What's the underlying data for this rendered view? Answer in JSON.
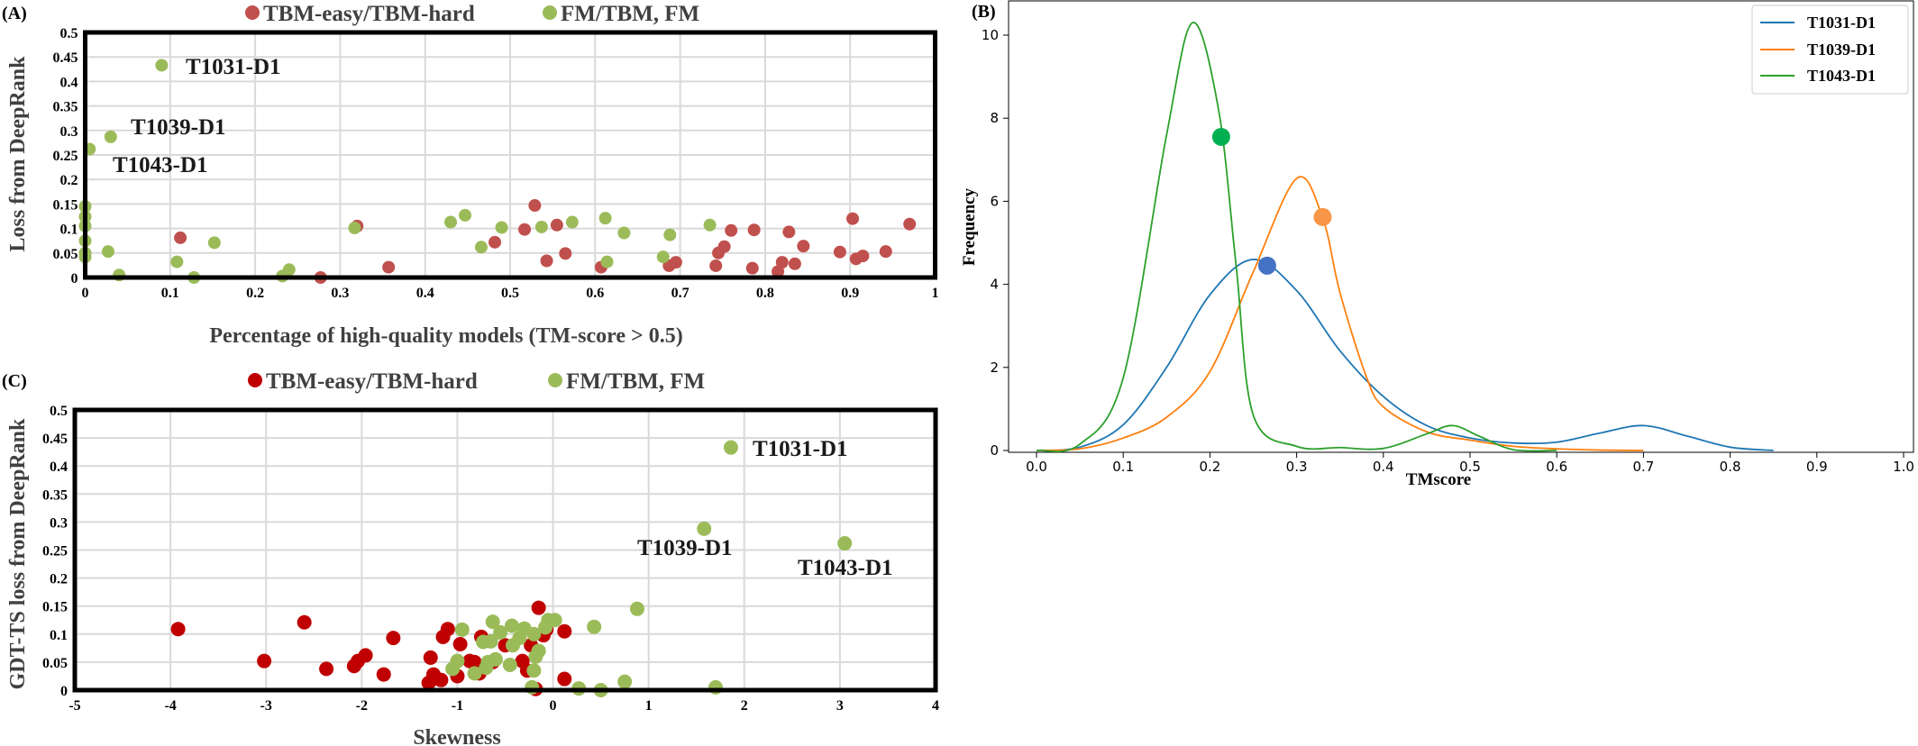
{
  "panels": {
    "a_letter": "(A)",
    "b_letter": "(B)",
    "c_letter": "(C)"
  },
  "colors": {
    "a_red": "#c0504d",
    "green": "#9bbb59",
    "c_red": "#c00000",
    "blue": "#1f77b4",
    "orange": "#ff7f0e",
    "b_green": "#2ca02c",
    "blue_marker": "#4472c4",
    "orange_marker": "#f79646",
    "green_marker": "#00b050"
  },
  "chart_data": [
    {
      "type": "scatter",
      "panel": "A",
      "xlabel": "Percentage of high-quality models (TM-score > 0.5)",
      "ylabel": "Loss from DeepRank",
      "xlim": [
        0,
        1
      ],
      "ylim": [
        0,
        0.5
      ],
      "xticks": [
        "0",
        "0.1",
        "0.2",
        "0.3",
        "0.4",
        "0.5",
        "0.6",
        "0.7",
        "0.8",
        "0.9",
        "1"
      ],
      "yticks": [
        "0",
        "0.05",
        "0.1",
        "0.15",
        "0.2",
        "0.25",
        "0.3",
        "0.35",
        "0.4",
        "0.45",
        "0.5"
      ],
      "grid": true,
      "legend_position": "top",
      "series": [
        {
          "name": "TBM-easy/TBM-hard",
          "points": [
            [
              0.112,
              0.081
            ],
            [
              0.277,
              0.0
            ],
            [
              0.32,
              0.105
            ],
            [
              0.357,
              0.021
            ],
            [
              0.482,
              0.072
            ],
            [
              0.517,
              0.098
            ],
            [
              0.529,
              0.147
            ],
            [
              0.543,
              0.034
            ],
            [
              0.555,
              0.107
            ],
            [
              0.565,
              0.049
            ],
            [
              0.607,
              0.021
            ],
            [
              0.687,
              0.024
            ],
            [
              0.695,
              0.031
            ],
            [
              0.742,
              0.024
            ],
            [
              0.745,
              0.05
            ],
            [
              0.752,
              0.063
            ],
            [
              0.76,
              0.096
            ],
            [
              0.785,
              0.019
            ],
            [
              0.787,
              0.097
            ],
            [
              0.815,
              0.012
            ],
            [
              0.82,
              0.031
            ],
            [
              0.828,
              0.093
            ],
            [
              0.835,
              0.028
            ],
            [
              0.845,
              0.064
            ],
            [
              0.888,
              0.052
            ],
            [
              0.903,
              0.12
            ],
            [
              0.907,
              0.038
            ],
            [
              0.915,
              0.044
            ],
            [
              0.942,
              0.053
            ],
            [
              0.97,
              0.109
            ]
          ]
        },
        {
          "name": "FM/TBM, FM",
          "points": [
            [
              0.09,
              0.433
            ],
            [
              0.03,
              0.287
            ],
            [
              0.005,
              0.262
            ],
            [
              0.0,
              0.145
            ],
            [
              0.0,
              0.124
            ],
            [
              0.0,
              0.105
            ],
            [
              0.0,
              0.075
            ],
            [
              0.0,
              0.05
            ],
            [
              0.0,
              0.042
            ],
            [
              0.027,
              0.053
            ],
            [
              0.04,
              0.005
            ],
            [
              0.108,
              0.032
            ],
            [
              0.128,
              0.0
            ],
            [
              0.152,
              0.071
            ],
            [
              0.232,
              0.003
            ],
            [
              0.24,
              0.016
            ],
            [
              0.317,
              0.101
            ],
            [
              0.43,
              0.113
            ],
            [
              0.447,
              0.127
            ],
            [
              0.466,
              0.062
            ],
            [
              0.49,
              0.102
            ],
            [
              0.537,
              0.103
            ],
            [
              0.573,
              0.113
            ],
            [
              0.612,
              0.121
            ],
            [
              0.614,
              0.032
            ],
            [
              0.634,
              0.091
            ],
            [
              0.68,
              0.042
            ],
            [
              0.688,
              0.087
            ],
            [
              0.735,
              0.107
            ]
          ]
        }
      ],
      "annotations": [
        "T1031-D1",
        "T1039-D1",
        "T1043-D1"
      ]
    },
    {
      "type": "line",
      "panel": "B",
      "xlabel": "TMscore",
      "ylabel": "Frequency",
      "xlim": [
        -0.04,
        1.0
      ],
      "ylim": [
        0,
        10.5
      ],
      "xticks": [
        "0.0",
        "0.1",
        "0.2",
        "0.3",
        "0.4",
        "0.5",
        "0.6",
        "0.7",
        "0.8",
        "0.9",
        "1.0"
      ],
      "yticks": [
        "0",
        "2",
        "4",
        "6",
        "8",
        "10"
      ],
      "grid": false,
      "legend_position": "top-right",
      "series": [
        {
          "name": "T1031-D1",
          "x": [
            0.0,
            0.05,
            0.1,
            0.15,
            0.2,
            0.25,
            0.3,
            0.35,
            0.4,
            0.45,
            0.5,
            0.55,
            0.6,
            0.65,
            0.7,
            0.75,
            0.8,
            0.85
          ],
          "y": [
            0.0,
            0.08,
            0.62,
            2.0,
            3.75,
            4.6,
            3.85,
            2.4,
            1.3,
            0.6,
            0.3,
            0.18,
            0.2,
            0.42,
            0.6,
            0.35,
            0.08,
            0.0
          ],
          "marker": [
            0.266,
            4.45
          ]
        },
        {
          "name": "T1039-D1",
          "x": [
            0.0,
            0.05,
            0.1,
            0.15,
            0.2,
            0.25,
            0.3,
            0.33,
            0.35,
            0.38,
            0.4,
            0.45,
            0.5,
            0.55,
            0.6,
            0.65,
            0.7
          ],
          "y": [
            0.0,
            0.04,
            0.3,
            0.8,
            1.9,
            4.3,
            6.55,
            5.6,
            3.8,
            1.8,
            1.05,
            0.45,
            0.25,
            0.1,
            0.04,
            0.01,
            0.0
          ],
          "marker": [
            0.33,
            5.62
          ]
        },
        {
          "name": "T1043-D1",
          "x": [
            0.0,
            0.05,
            0.1,
            0.15,
            0.18,
            0.21,
            0.23,
            0.25,
            0.3,
            0.35,
            0.4,
            0.45,
            0.48,
            0.51,
            0.55,
            0.6
          ],
          "y": [
            0.0,
            0.15,
            1.75,
            7.6,
            10.3,
            8.2,
            4.5,
            0.85,
            0.1,
            0.07,
            0.05,
            0.4,
            0.6,
            0.35,
            0.02,
            0.0
          ],
          "marker": [
            0.213,
            7.55
          ]
        }
      ]
    },
    {
      "type": "scatter",
      "panel": "C",
      "xlabel": "Skewness",
      "ylabel": "GDT-TS loss from DeepRank",
      "xlim": [
        -5,
        4
      ],
      "ylim": [
        0,
        0.5
      ],
      "xticks": [
        "-5",
        "-4",
        "-3",
        "-2",
        "-1",
        "0",
        "1",
        "2",
        "3",
        "4"
      ],
      "yticks": [
        "0",
        "0.05",
        "0.1",
        "0.15",
        "0.2",
        "0.25",
        "0.3",
        "0.35",
        "0.4",
        "0.45",
        "0.5"
      ],
      "grid": true,
      "legend_position": "top",
      "series": [
        {
          "name": "TBM-easy/TBM-hard",
          "points": [
            [
              -3.92,
              0.109
            ],
            [
              -3.02,
              0.052
            ],
            [
              -2.6,
              0.121
            ],
            [
              -2.37,
              0.038
            ],
            [
              -2.08,
              0.043
            ],
            [
              -2.04,
              0.052
            ],
            [
              -1.96,
              0.062
            ],
            [
              -1.77,
              0.028
            ],
            [
              -1.67,
              0.093
            ],
            [
              -1.3,
              0.013
            ],
            [
              -1.28,
              0.058
            ],
            [
              -1.25,
              0.028
            ],
            [
              -1.22,
              0.021
            ],
            [
              -1.17,
              0.018
            ],
            [
              -1.15,
              0.095
            ],
            [
              -1.1,
              0.109
            ],
            [
              -1.0,
              0.025
            ],
            [
              -0.97,
              0.082
            ],
            [
              -0.87,
              0.052
            ],
            [
              -0.82,
              0.05
            ],
            [
              -0.77,
              0.03
            ],
            [
              -0.75,
              0.095
            ],
            [
              -0.63,
              0.05
            ],
            [
              -0.5,
              0.08
            ],
            [
              -0.32,
              0.052
            ],
            [
              -0.27,
              0.035
            ],
            [
              -0.23,
              0.08
            ],
            [
              -0.18,
              0.002
            ],
            [
              -0.15,
              0.147
            ],
            [
              -0.1,
              0.098
            ],
            [
              -0.07,
              0.108
            ],
            [
              0.12,
              0.105
            ],
            [
              0.12,
              0.02
            ]
          ]
        },
        {
          "name": "FM/TBM, FM",
          "points": [
            [
              1.86,
              0.433
            ],
            [
              1.58,
              0.288
            ],
            [
              3.05,
              0.262
            ],
            [
              0.88,
              0.145
            ],
            [
              0.43,
              0.113
            ],
            [
              0.02,
              0.125
            ],
            [
              -0.08,
              0.112
            ],
            [
              -0.05,
              0.125
            ],
            [
              -0.43,
              0.115
            ],
            [
              -0.63,
              0.122
            ],
            [
              -0.65,
              0.087
            ],
            [
              -0.95,
              0.108
            ],
            [
              -0.55,
              0.103
            ],
            [
              -0.35,
              0.093
            ],
            [
              -0.2,
              0.1
            ],
            [
              -0.42,
              0.08
            ],
            [
              -0.73,
              0.086
            ],
            [
              -0.6,
              0.055
            ],
            [
              -0.68,
              0.05
            ],
            [
              -1.0,
              0.052
            ],
            [
              -0.82,
              0.03
            ],
            [
              -0.45,
              0.045
            ],
            [
              -0.18,
              0.06
            ],
            [
              -0.15,
              0.07
            ],
            [
              -0.2,
              0.035
            ],
            [
              -0.22,
              0.005
            ],
            [
              0.27,
              0.003
            ],
            [
              0.5,
              0.0
            ],
            [
              0.75,
              0.015
            ],
            [
              1.7,
              0.005
            ],
            [
              -0.7,
              0.04
            ],
            [
              -1.05,
              0.038
            ],
            [
              -0.3,
              0.11
            ]
          ]
        }
      ],
      "annotations": [
        "T1031-D1",
        "T1039-D1",
        "T1043-D1"
      ]
    }
  ]
}
